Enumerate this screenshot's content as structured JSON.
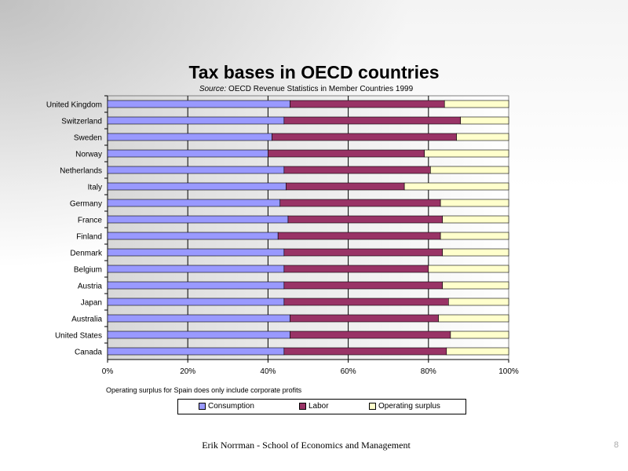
{
  "slide": {
    "footer_text": "Erik  Norrman - School of Economics  and Management",
    "page_number": "8"
  },
  "chart_data": {
    "type": "bar",
    "orientation": "horizontal",
    "stacked": "percent",
    "title": "Tax bases in OECD countries",
    "subtitle_source_label": "Source:",
    "subtitle_text": " OECD Revenue Statistics in Member Countries 1999",
    "categories": [
      "United Kingdom",
      "Switzerland",
      "Sweden",
      "Norway",
      "Netherlands",
      "Italy",
      "Germany",
      "France",
      "Finland",
      "Denmark",
      "Belgium",
      "Austria",
      "Japan",
      "Australia",
      "United States",
      "Canada"
    ],
    "series": [
      {
        "name": "Consumption",
        "color": "#9999ff",
        "values": [
          45.5,
          44,
          41,
          40,
          44,
          44.5,
          43,
          45,
          42.5,
          44,
          44,
          44,
          44,
          45.5,
          45.5,
          44
        ]
      },
      {
        "name": "Labor",
        "color": "#993366",
        "values": [
          38.5,
          44,
          46,
          39,
          36.5,
          29.5,
          40,
          38.5,
          40.5,
          39.5,
          36,
          39.5,
          41,
          37,
          40,
          40.5
        ]
      },
      {
        "name": "Operating surplus",
        "color": "#ffffcc",
        "values": [
          16,
          12,
          13,
          21,
          19.5,
          26,
          17,
          16.5,
          17,
          16.5,
          20,
          16.5,
          15,
          17.5,
          14.5,
          15.5
        ]
      }
    ],
    "x_ticks": [
      "0%",
      "20%",
      "40%",
      "60%",
      "80%",
      "100%"
    ],
    "xlim": [
      0,
      100
    ],
    "grid": "vertical",
    "note": "Operating surplus for Spain does only include corporate profits",
    "legend_position": "bottom"
  }
}
